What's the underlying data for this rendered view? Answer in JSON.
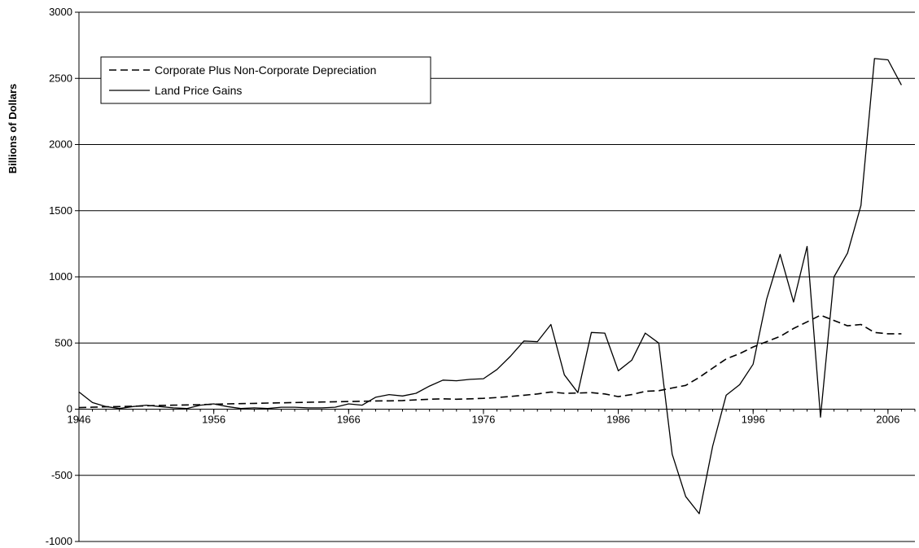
{
  "chart_data": {
    "type": "line",
    "title": "",
    "xlabel": "",
    "ylabel": "Billions of Dollars",
    "ylim": [
      -1000,
      3000
    ],
    "yticks": [
      -1000,
      -500,
      0,
      500,
      1000,
      1500,
      2000,
      2500,
      3000
    ],
    "xlim": [
      1946,
      2008
    ],
    "xticks": [
      1946,
      1956,
      1966,
      1976,
      1986,
      1996,
      2006
    ],
    "grid": "horizontal",
    "legend": "top-left",
    "x": [
      1946,
      1947,
      1948,
      1949,
      1950,
      1951,
      1952,
      1953,
      1954,
      1955,
      1956,
      1957,
      1958,
      1959,
      1960,
      1961,
      1962,
      1963,
      1964,
      1965,
      1966,
      1967,
      1968,
      1969,
      1970,
      1971,
      1972,
      1973,
      1974,
      1975,
      1976,
      1977,
      1978,
      1979,
      1980,
      1981,
      1982,
      1983,
      1984,
      1985,
      1986,
      1987,
      1988,
      1989,
      1990,
      1991,
      1992,
      1993,
      1994,
      1995,
      1996,
      1997,
      1998,
      1999,
      2000,
      2001,
      2002,
      2003,
      2004,
      2005,
      2006,
      2007
    ],
    "series": [
      {
        "name": "Corporate Plus Non-Corporate Depreciation",
        "style": "dashed",
        "values": [
          12,
          15,
          18,
          20,
          22,
          25,
          28,
          30,
          32,
          34,
          37,
          40,
          42,
          44,
          46,
          48,
          50,
          52,
          54,
          56,
          58,
          60,
          62,
          63,
          65,
          70,
          75,
          78,
          75,
          78,
          82,
          88,
          96,
          105,
          115,
          130,
          120,
          122,
          125,
          115,
          95,
          110,
          135,
          140,
          160,
          180,
          240,
          310,
          380,
          420,
          470,
          510,
          550,
          610,
          660,
          710,
          670,
          630,
          640,
          580,
          570,
          570
        ]
      },
      {
        "name": "Land Price Gains",
        "style": "solid",
        "values": [
          130,
          50,
          20,
          5,
          20,
          30,
          20,
          10,
          5,
          30,
          40,
          20,
          5,
          10,
          5,
          15,
          15,
          10,
          10,
          15,
          40,
          30,
          90,
          110,
          100,
          120,
          175,
          220,
          215,
          225,
          230,
          300,
          400,
          515,
          510,
          640,
          260,
          125,
          580,
          575,
          290,
          370,
          575,
          500,
          -340,
          -660,
          -790,
          -280,
          105,
          185,
          340,
          830,
          1170,
          810,
          1230,
          -60,
          1000,
          1180,
          1540,
          2650,
          2640,
          2450
        ]
      }
    ]
  }
}
